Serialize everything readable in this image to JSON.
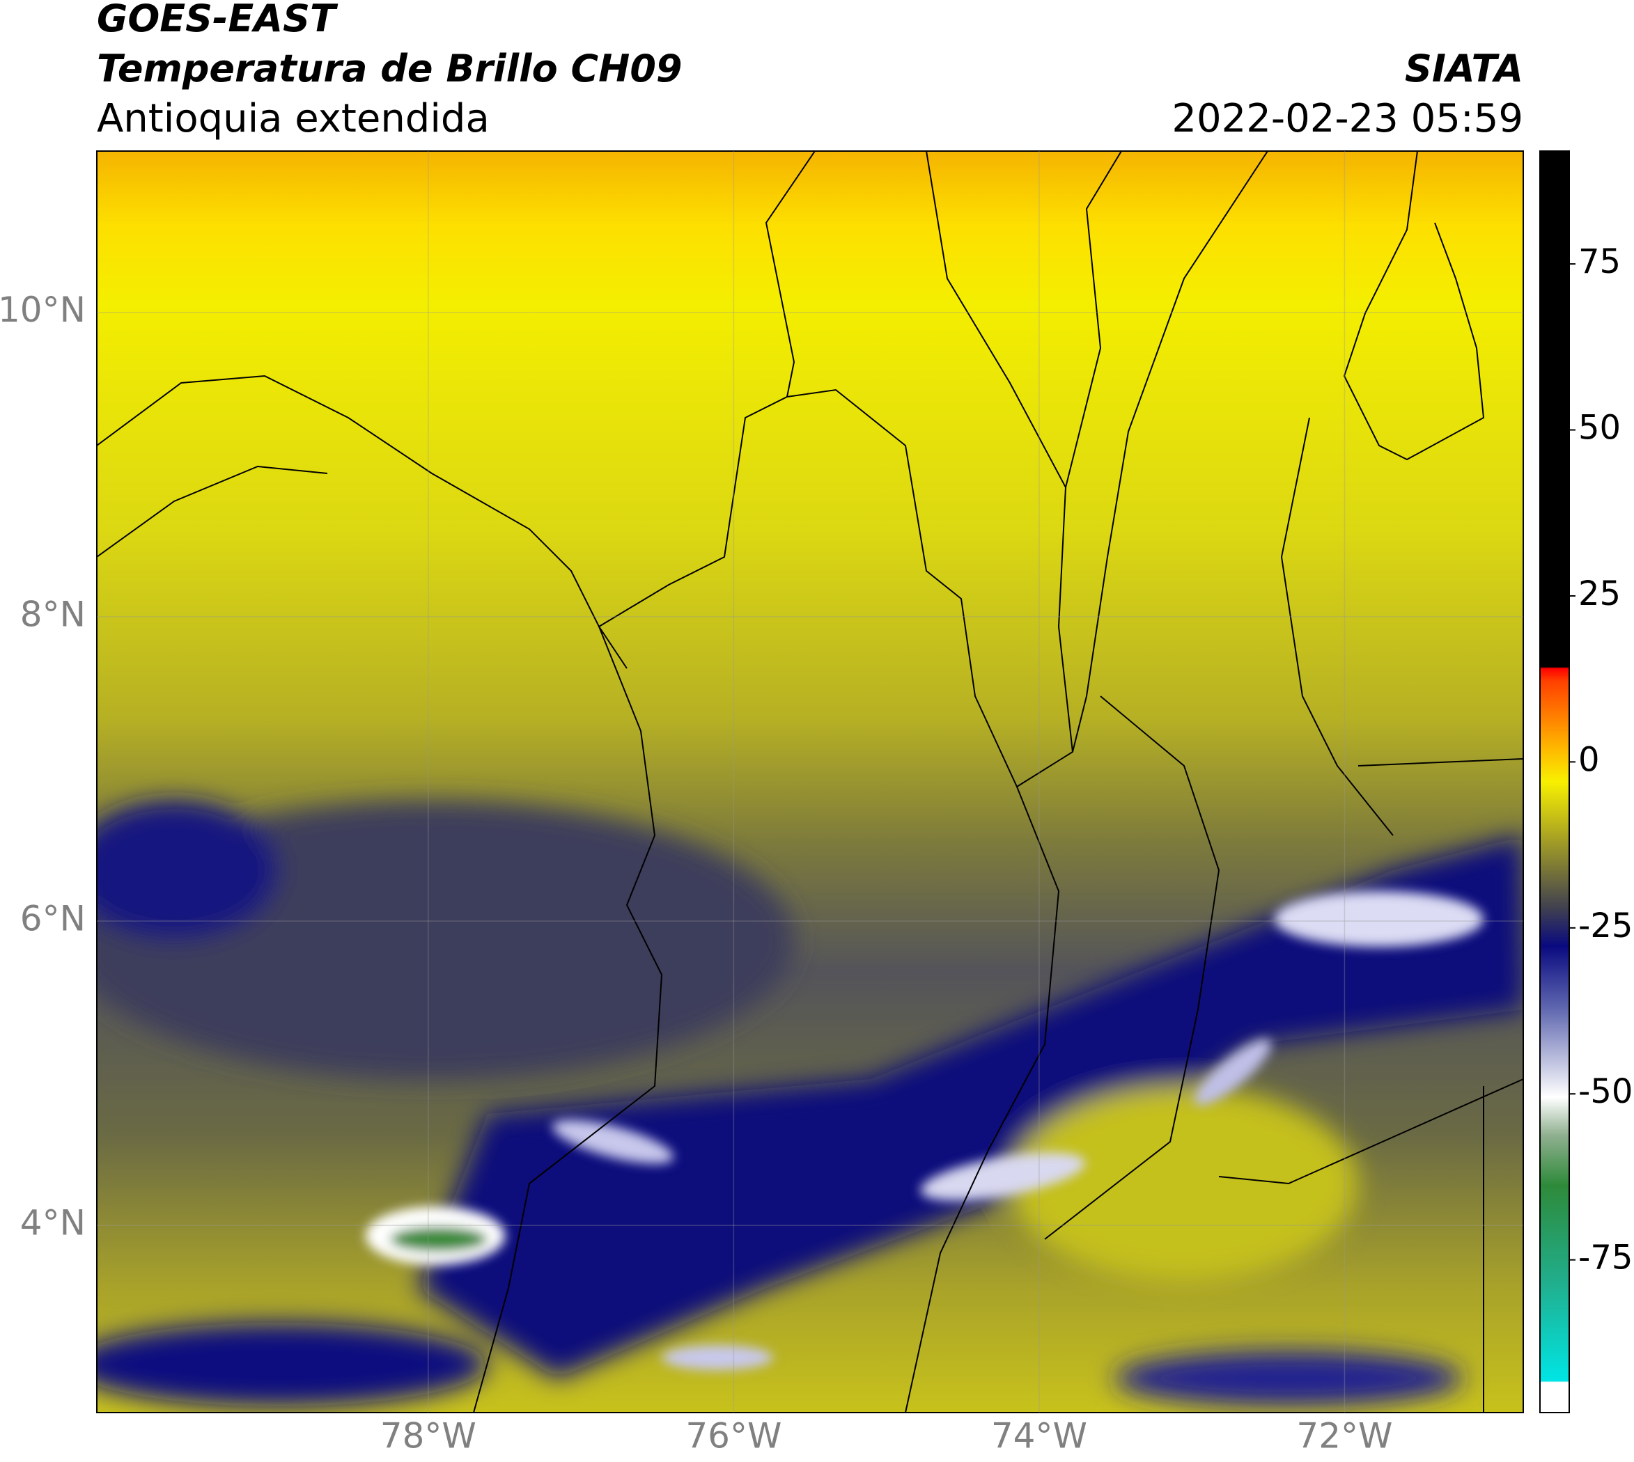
{
  "header": {
    "title": "GOES-EAST",
    "subtitle": "Temperatura de Brillo CH09",
    "region": "Antioquia extendida",
    "source": "SIATA",
    "datetime": "2022-02-23 05:59"
  },
  "map": {
    "xlim": [
      -80.17,
      -70.83
    ],
    "ylim": [
      2.77,
      11.06
    ],
    "xticks": [
      {
        "value": -78,
        "label": "78°W"
      },
      {
        "value": -76,
        "label": "76°W"
      },
      {
        "value": -74,
        "label": "74°W"
      },
      {
        "value": -72,
        "label": "72°W"
      }
    ],
    "yticks": [
      {
        "value": 4,
        "label": "4°N"
      },
      {
        "value": 6,
        "label": "6°N"
      },
      {
        "value": 8,
        "label": "8°N"
      },
      {
        "value": 10,
        "label": "10°N"
      }
    ],
    "grid": true
  },
  "colorbar": {
    "lim": [
      -98,
      92
    ],
    "ticks": [
      -75,
      -50,
      -25,
      0,
      25,
      50,
      75
    ]
  }
}
